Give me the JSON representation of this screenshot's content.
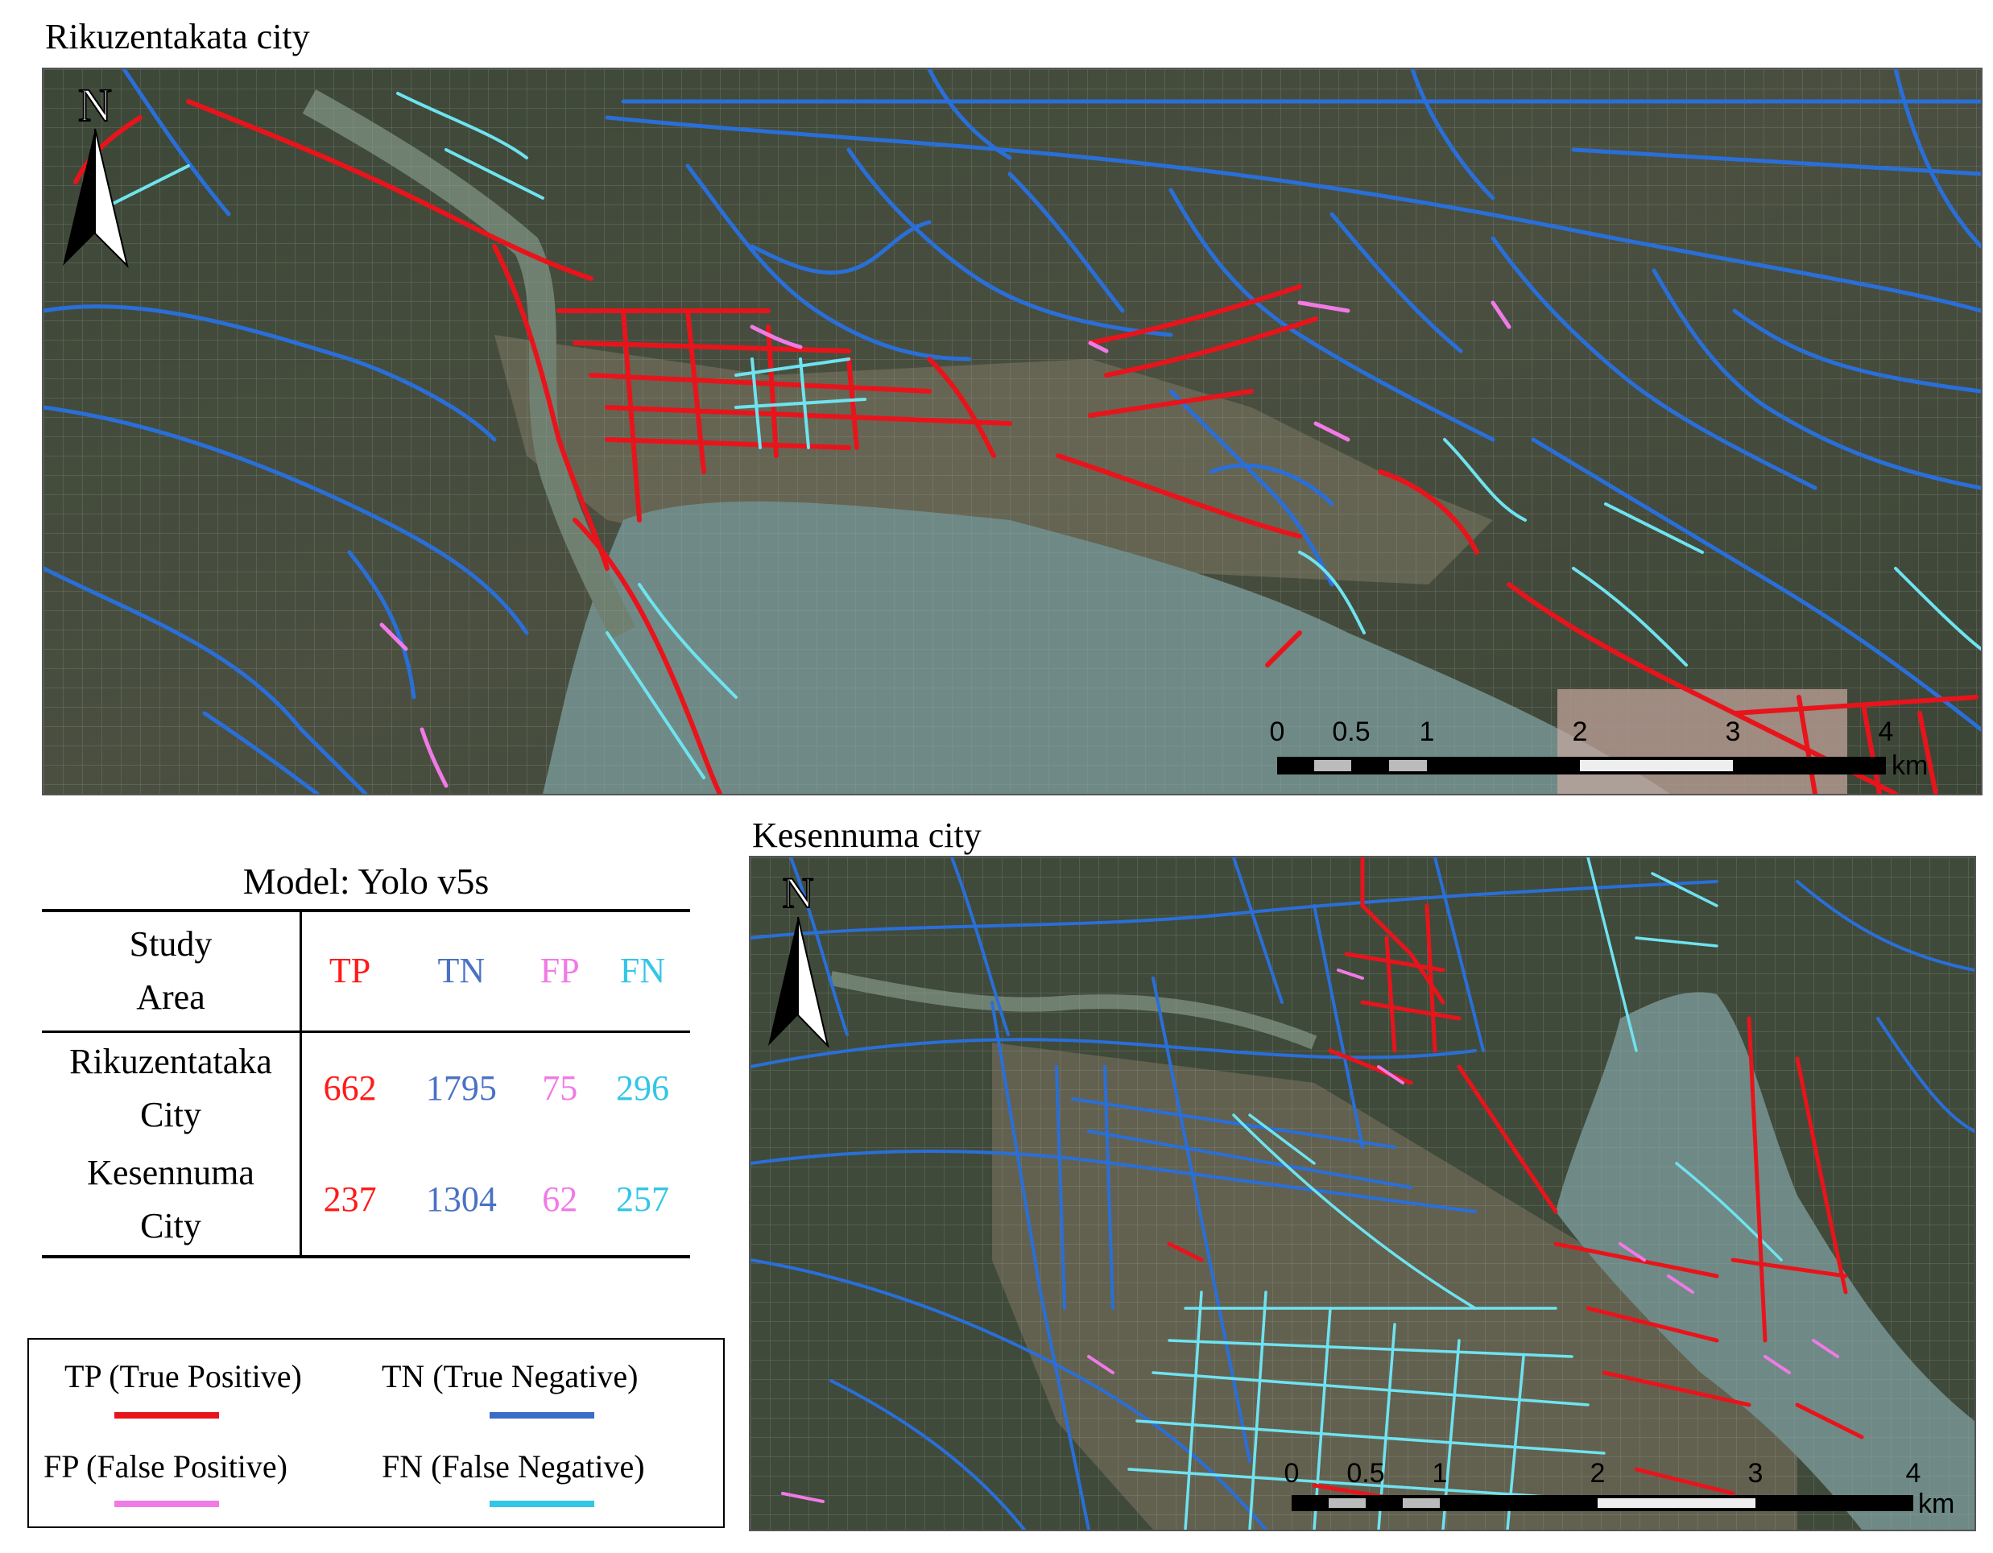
{
  "maps": {
    "rikuzentakata": {
      "title": "Rikuzentakata city",
      "north_label": "N",
      "scale_ticks": [
        "0",
        "0.5",
        "1",
        "2",
        "3",
        "4"
      ],
      "scale_unit": "km"
    },
    "kesennuma": {
      "title": "Kesennuma city",
      "north_label": "N",
      "scale_ticks": [
        "0",
        "0.5",
        "1",
        "2",
        "3",
        "4"
      ],
      "scale_unit": "km"
    }
  },
  "table": {
    "title": "Model: Yolo v5s",
    "header": {
      "study_area_line1": "Study",
      "study_area_line2": "Area",
      "tp": "TP",
      "tn": "TN",
      "fp": "FP",
      "fn": "FN"
    },
    "rows": [
      {
        "area_line1": "Rikuzentataka",
        "area_line2": "City",
        "tp": "662",
        "tn": "1795",
        "fp": "75",
        "fn": "296"
      },
      {
        "area_line1": "Kesennuma",
        "area_line2": "City",
        "tp": "237",
        "tn": "1304",
        "fp": "62",
        "fn": "257"
      }
    ]
  },
  "legend": {
    "tp": "TP (True Positive)",
    "tn": "TN (True Negative)",
    "fp": "FP (False Positive)",
    "fn": "FN (False Negative)"
  },
  "colors": {
    "tp": "#e8141c",
    "tn": "#2a6fd8",
    "fp": "#f07ae6",
    "fn": "#6fe3f0",
    "table_tp": "#ff1a1a",
    "table_tn": "#4a72c4",
    "table_fp": "#f07ae6",
    "table_fn": "#33c6e6",
    "water": "#6f8a86",
    "land": "#3f4a3a"
  }
}
